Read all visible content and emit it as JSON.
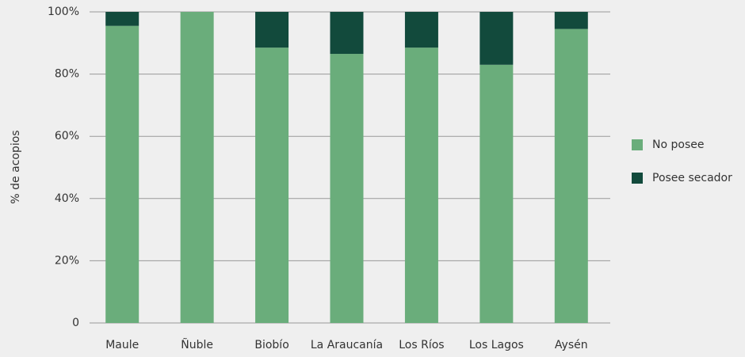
{
  "chart_data": {
    "type": "stacked_bar",
    "y_label": "% de acopios",
    "categories": [
      "Maule",
      "Ñuble",
      "Biobío",
      "La Araucanía",
      "Los Ríos",
      "Los Lagos",
      "Aysén"
    ],
    "series": [
      {
        "name": "No posee",
        "color": "#6aad7b",
        "values": [
          95.5,
          100,
          88.5,
          86.5,
          88.5,
          83,
          94.5
        ]
      },
      {
        "name": "Posee secador",
        "color": "#124a3c",
        "values": [
          4.5,
          0,
          11.5,
          13.5,
          11.5,
          17,
          5.5
        ]
      }
    ],
    "ylim": [
      0,
      100
    ],
    "yticks": [
      0,
      {
        "value": 20,
        "label": "20%"
      },
      {
        "value": 40,
        "label": "40%"
      },
      {
        "value": 60,
        "label": "60%"
      },
      {
        "value": 80,
        "label": "80%"
      },
      {
        "value": 100,
        "label": "100%"
      }
    ],
    "grid": true,
    "legend": "right"
  }
}
